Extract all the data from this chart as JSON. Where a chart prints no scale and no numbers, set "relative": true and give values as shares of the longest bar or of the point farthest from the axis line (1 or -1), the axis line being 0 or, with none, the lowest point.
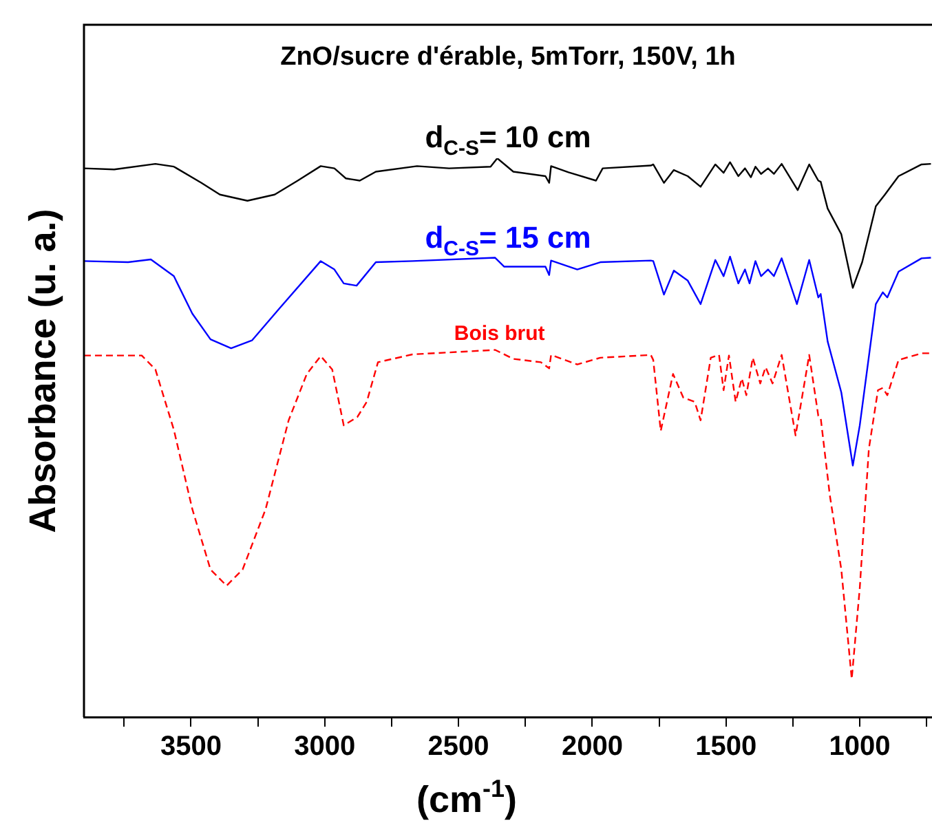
{
  "chart_data": {
    "type": "line",
    "title": "ZnO/sucre d'érable, 5mTorr, 150V, 1h",
    "xlabel": "(cm$^{-1}$)",
    "ylabel": "Absorbance (u. a.)",
    "relative": true,
    "legend": false,
    "grid": false,
    "xlim": [
      3900,
      730
    ],
    "xticks": [
      {
        "value": 3750,
        "label": null
      },
      3500,
      {
        "value": 3250,
        "label": null
      },
      3000,
      {
        "value": 2750,
        "label": null
      },
      2500,
      {
        "value": 2250,
        "label": null
      },
      2000,
      {
        "value": 1750,
        "label": null
      },
      1500,
      {
        "value": 1250,
        "label": null
      },
      1000,
      {
        "value": 750,
        "label": null
      }
    ],
    "series": [
      {
        "name": "d$_{C-S}$= 10 cm",
        "color": "#000000",
        "line_style": "solid",
        "x": [
          3900,
          3787,
          3633,
          3564,
          3461,
          3392,
          3289,
          3187,
          3101,
          3015,
          2964,
          2921,
          2869,
          2809,
          2655,
          2535,
          2380,
          2355,
          2295,
          2175,
          2161,
          2154,
          2089,
          1986,
          1961,
          1781,
          1772,
          1732,
          1695,
          1643,
          1595,
          1540,
          1509,
          1485,
          1454,
          1429,
          1407,
          1390,
          1369,
          1343,
          1321,
          1292,
          1232,
          1189,
          1155,
          1146,
          1120,
          1069,
          1026,
          991,
          940,
          906,
          855,
          769,
          734
        ],
        "values": [
          0.982,
          0.98,
          0.99,
          0.985,
          0.956,
          0.935,
          0.924,
          0.935,
          0.96,
          0.986,
          0.982,
          0.964,
          0.96,
          0.976,
          0.986,
          0.982,
          0.985,
          1.0,
          0.976,
          0.968,
          0.956,
          0.986,
          0.975,
          0.96,
          0.982,
          0.987,
          0.989,
          0.956,
          0.979,
          0.968,
          0.949,
          0.989,
          0.974,
          0.993,
          0.968,
          0.982,
          0.966,
          0.985,
          0.972,
          0.982,
          0.972,
          0.99,
          0.943,
          0.989,
          0.96,
          0.958,
          0.91,
          0.864,
          0.768,
          0.814,
          0.914,
          0.935,
          0.968,
          0.989,
          0.99
        ]
      },
      {
        "name": "d$_{C-S}$= 15 cm",
        "color": "#0000ff",
        "line_style": "solid",
        "x": [
          3900,
          3735,
          3650,
          3564,
          3495,
          3427,
          3350,
          3272,
          3170,
          3015,
          2964,
          2929,
          2881,
          2809,
          2672,
          2363,
          2329,
          2175,
          2161,
          2154,
          2056,
          1970,
          1781,
          1772,
          1732,
          1695,
          1643,
          1595,
          1540,
          1509,
          1485,
          1454,
          1429,
          1412,
          1390,
          1369,
          1343,
          1321,
          1292,
          1235,
          1189,
          1155,
          1146,
          1120,
          1069,
          1026,
          1000,
          940,
          914,
          897,
          855,
          769,
          734
        ],
        "values": [
          0.816,
          0.814,
          0.819,
          0.789,
          0.722,
          0.676,
          0.66,
          0.674,
          0.731,
          0.816,
          0.801,
          0.776,
          0.772,
          0.814,
          0.816,
          0.822,
          0.806,
          0.806,
          0.791,
          0.817,
          0.801,
          0.814,
          0.817,
          0.816,
          0.756,
          0.799,
          0.781,
          0.739,
          0.818,
          0.789,
          0.824,
          0.776,
          0.801,
          0.776,
          0.816,
          0.789,
          0.801,
          0.789,
          0.821,
          0.739,
          0.818,
          0.751,
          0.757,
          0.672,
          0.581,
          0.45,
          0.522,
          0.739,
          0.76,
          0.751,
          0.797,
          0.821,
          0.822
        ]
      },
      {
        "name": "Bois brut",
        "color": "#ff0000",
        "line_style": "dashed",
        "x": [
          3900,
          3684,
          3633,
          3564,
          3495,
          3427,
          3367,
          3307,
          3221,
          3135,
          3067,
          3015,
          2972,
          2929,
          2878,
          2843,
          2801,
          2672,
          2363,
          2295,
          2192,
          2161,
          2154,
          2056,
          1970,
          1781,
          1772,
          1744,
          1698,
          1660,
          1617,
          1595,
          1557,
          1526,
          1509,
          1489,
          1464,
          1441,
          1424,
          1400,
          1372,
          1352,
          1326,
          1292,
          1240,
          1189,
          1155,
          1146,
          1112,
          1069,
          1030,
          1000,
          966,
          932,
          914,
          897,
          855,
          769,
          734
        ],
        "values": [
          0.647,
          0.647,
          0.622,
          0.514,
          0.372,
          0.264,
          0.235,
          0.264,
          0.372,
          0.531,
          0.614,
          0.646,
          0.622,
          0.522,
          0.537,
          0.564,
          0.635,
          0.649,
          0.657,
          0.641,
          0.635,
          0.624,
          0.648,
          0.631,
          0.643,
          0.648,
          0.639,
          0.512,
          0.614,
          0.572,
          0.564,
          0.531,
          0.643,
          0.648,
          0.585,
          0.647,
          0.564,
          0.606,
          0.576,
          0.643,
          0.597,
          0.626,
          0.597,
          0.648,
          0.504,
          0.648,
          0.539,
          0.535,
          0.397,
          0.264,
          0.068,
          0.231,
          0.48,
          0.585,
          0.589,
          0.576,
          0.639,
          0.651,
          0.651
        ]
      }
    ]
  }
}
